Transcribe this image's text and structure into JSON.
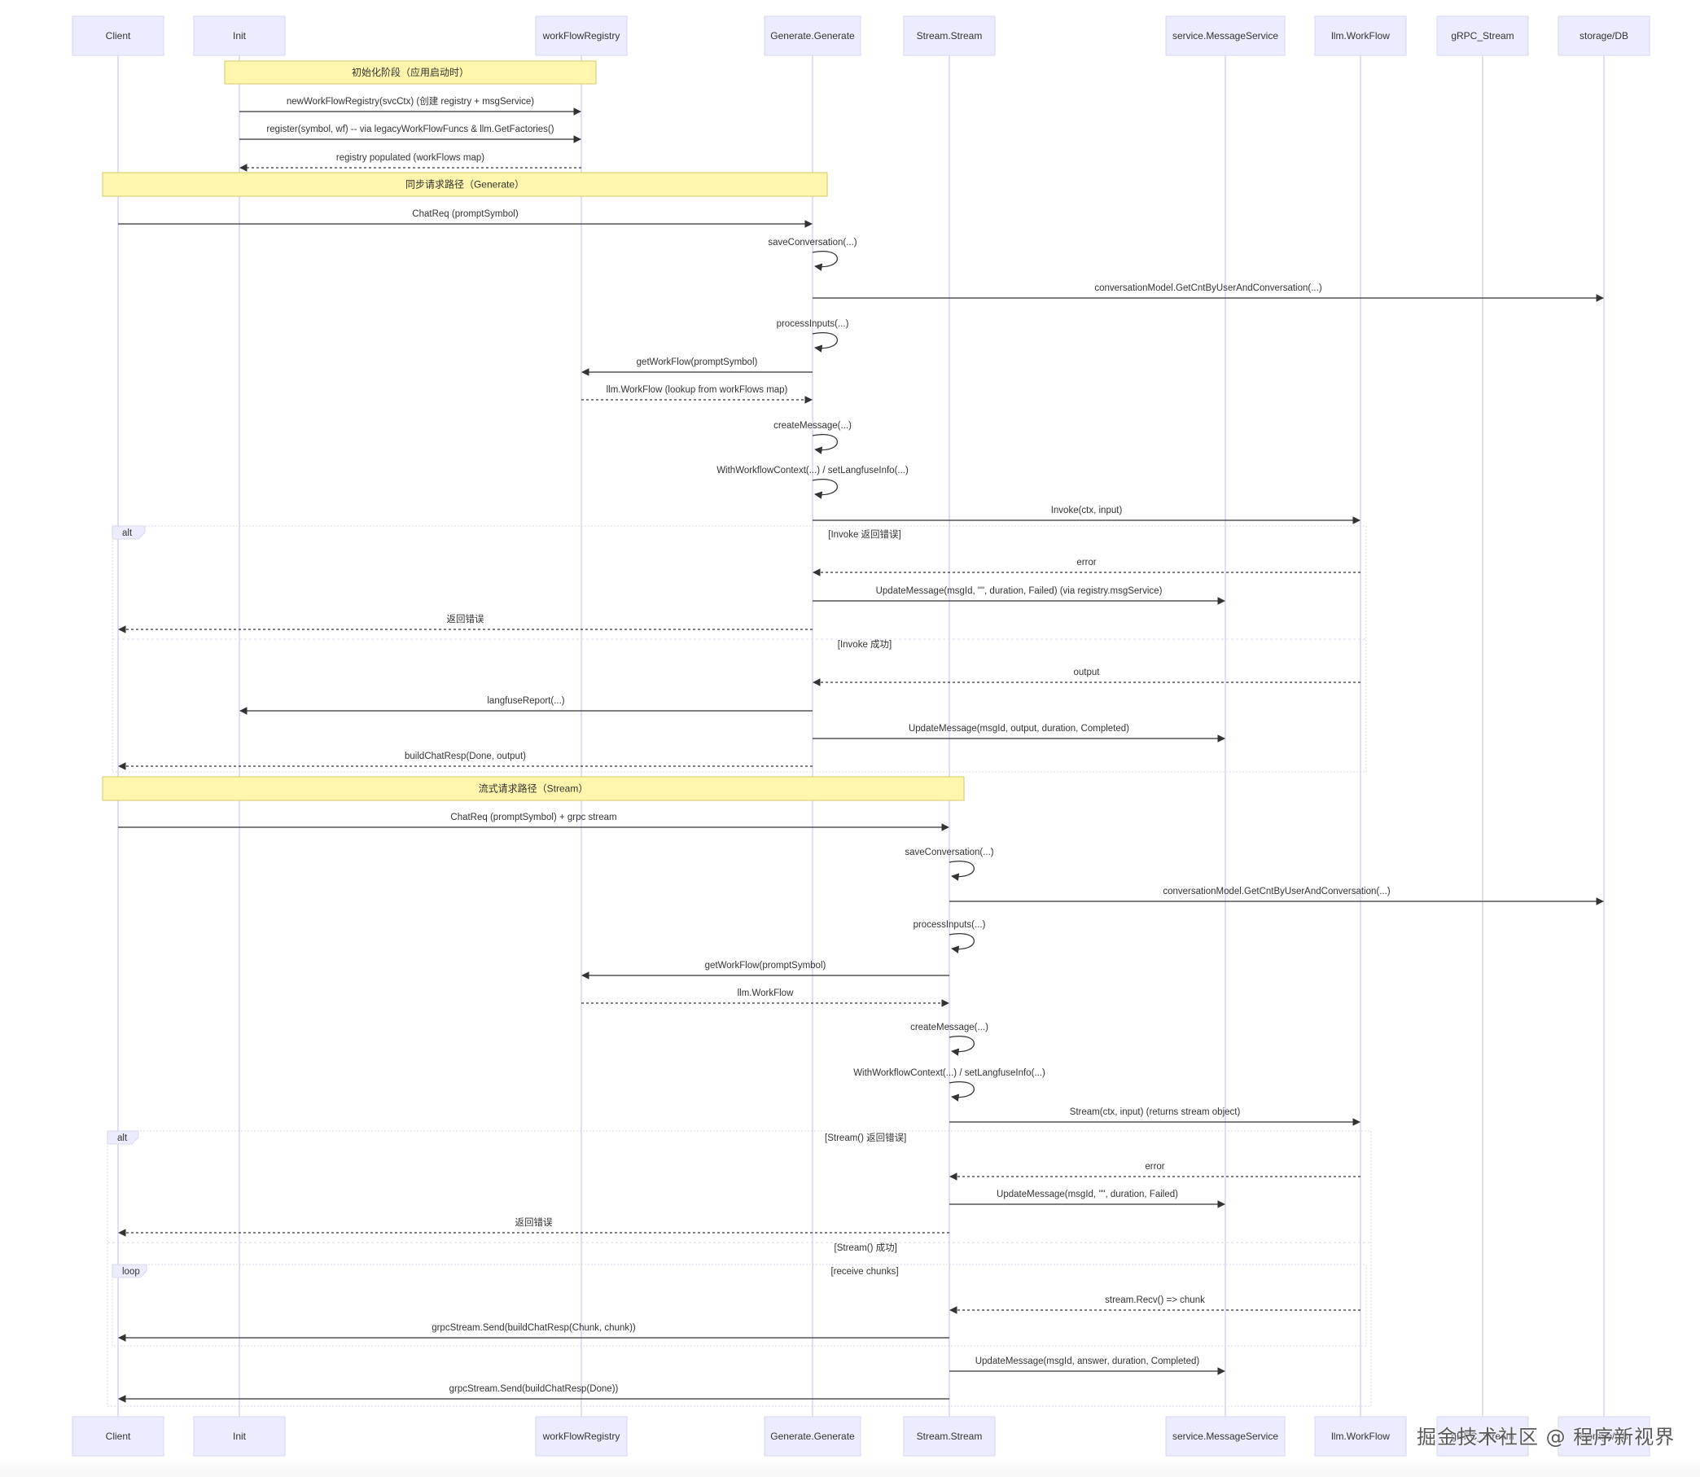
{
  "colors": {
    "actor_fill": "#ececff",
    "actor_stroke": "#d5d5f5",
    "lifeline": "#c8c8ee",
    "note_fill": "#fff5ad",
    "note_stroke": "#d6c96a",
    "line": "#333333",
    "frame_stroke": "#d8d8ea"
  },
  "actors": [
    {
      "id": "client",
      "label": "Client"
    },
    {
      "id": "init",
      "label": "Init"
    },
    {
      "id": "registry",
      "label": "workFlowRegistry"
    },
    {
      "id": "generate",
      "label": "Generate.Generate"
    },
    {
      "id": "stream",
      "label": "Stream.Stream"
    },
    {
      "id": "msgsvc",
      "label": "service.MessageService"
    },
    {
      "id": "workflow",
      "label": "llm.WorkFlow"
    },
    {
      "id": "grpc",
      "label": "gRPC_Stream"
    },
    {
      "id": "db",
      "label": "storage/DB"
    }
  ],
  "notes": [
    {
      "label": "初始化阶段（应用启动时）"
    },
    {
      "label": "同步请求路径（Generate）"
    },
    {
      "label": "流式请求路径（Stream）"
    }
  ],
  "messages": [
    {
      "from": "init",
      "to": "registry",
      "label": "newWorkFlowRegistry(svcCtx) (创建 registry + msgService)",
      "style": "solid"
    },
    {
      "from": "init",
      "to": "registry",
      "label": "register(symbol, wf) -- via legacyWorkFlowFuncs & llm.GetFactories()",
      "style": "solid"
    },
    {
      "from": "registry",
      "to": "init",
      "label": "registry populated (workFlows map)",
      "style": "dotted"
    },
    {
      "from": "client",
      "to": "generate",
      "label": "ChatReq (promptSymbol)",
      "style": "solid"
    },
    {
      "from": "generate",
      "to": "generate",
      "label": "saveConversation(...)",
      "style": "self"
    },
    {
      "from": "generate",
      "to": "db",
      "label": "conversationModel.GetCntByUserAndConversation(...)",
      "style": "solid"
    },
    {
      "from": "generate",
      "to": "generate",
      "label": "processInputs(...)",
      "style": "self"
    },
    {
      "from": "generate",
      "to": "registry",
      "label": "getWorkFlow(promptSymbol)",
      "style": "solid"
    },
    {
      "from": "registry",
      "to": "generate",
      "label": "llm.WorkFlow (lookup from workFlows map)",
      "style": "dotted"
    },
    {
      "from": "generate",
      "to": "generate",
      "label": "createMessage(...)",
      "style": "self"
    },
    {
      "from": "generate",
      "to": "generate",
      "label": "WithWorkflowContext(...) / setLangfuseInfo(...)",
      "style": "self"
    },
    {
      "from": "generate",
      "to": "workflow",
      "label": "Invoke(ctx, input)",
      "style": "solid"
    },
    {
      "from": "workflow",
      "to": "generate",
      "label": "error",
      "style": "dotted"
    },
    {
      "from": "generate",
      "to": "msgsvc",
      "label": "UpdateMessage(msgId, \"\", duration, Failed) (via registry.msgService)",
      "style": "solid"
    },
    {
      "from": "generate",
      "to": "client",
      "label": "返回错误",
      "style": "dotted"
    },
    {
      "from": "workflow",
      "to": "generate",
      "label": "output",
      "style": "dotted"
    },
    {
      "from": "generate",
      "to": "init",
      "label": "langfuseReport(...)",
      "style": "solid"
    },
    {
      "from": "generate",
      "to": "msgsvc",
      "label": "UpdateMessage(msgId, output, duration, Completed)",
      "style": "solid"
    },
    {
      "from": "generate",
      "to": "client",
      "label": "buildChatResp(Done, output)",
      "style": "dotted"
    },
    {
      "from": "client",
      "to": "stream",
      "label": "ChatReq (promptSymbol) + grpc stream",
      "style": "solid"
    },
    {
      "from": "stream",
      "to": "stream",
      "label": "saveConversation(...)",
      "style": "self"
    },
    {
      "from": "stream",
      "to": "db",
      "label": "conversationModel.GetCntByUserAndConversation(...)",
      "style": "solid"
    },
    {
      "from": "stream",
      "to": "stream",
      "label": "processInputs(...)",
      "style": "self"
    },
    {
      "from": "stream",
      "to": "registry",
      "label": "getWorkFlow(promptSymbol)",
      "style": "solid"
    },
    {
      "from": "registry",
      "to": "stream",
      "label": "llm.WorkFlow",
      "style": "dotted"
    },
    {
      "from": "stream",
      "to": "stream",
      "label": "createMessage(...)",
      "style": "self"
    },
    {
      "from": "stream",
      "to": "stream",
      "label": "WithWorkflowContext(...) / setLangfuseInfo(...)",
      "style": "self"
    },
    {
      "from": "stream",
      "to": "workflow",
      "label": "Stream(ctx, input) (returns stream object)",
      "style": "solid"
    },
    {
      "from": "workflow",
      "to": "stream",
      "label": "error",
      "style": "dotted"
    },
    {
      "from": "stream",
      "to": "msgsvc",
      "label": "UpdateMessage(msgId, \"\", duration, Failed)",
      "style": "solid"
    },
    {
      "from": "stream",
      "to": "client",
      "label": "返回错误",
      "style": "dotted"
    },
    {
      "from": "workflow",
      "to": "stream",
      "label": "stream.Recv() => chunk",
      "style": "dotted"
    },
    {
      "from": "stream",
      "to": "client",
      "label": "grpcStream.Send(buildChatResp(Chunk, chunk))",
      "style": "solid"
    },
    {
      "from": "stream",
      "to": "msgsvc",
      "label": "UpdateMessage(msgId, answer, duration, Completed)",
      "style": "solid"
    },
    {
      "from": "stream",
      "to": "client",
      "label": "grpcStream.Send(buildChatResp(Done))",
      "style": "solid"
    }
  ],
  "frames": [
    {
      "type": "alt",
      "conditions": [
        "[Invoke 返回错误]",
        "[Invoke 成功]"
      ]
    },
    {
      "type": "alt",
      "conditions": [
        "[Stream() 返回错误]",
        "[Stream() 成功]"
      ]
    },
    {
      "type": "loop",
      "conditions": [
        "[receive chunks]"
      ]
    }
  ],
  "watermark": "掘金技术社区 @ 程序新视界"
}
